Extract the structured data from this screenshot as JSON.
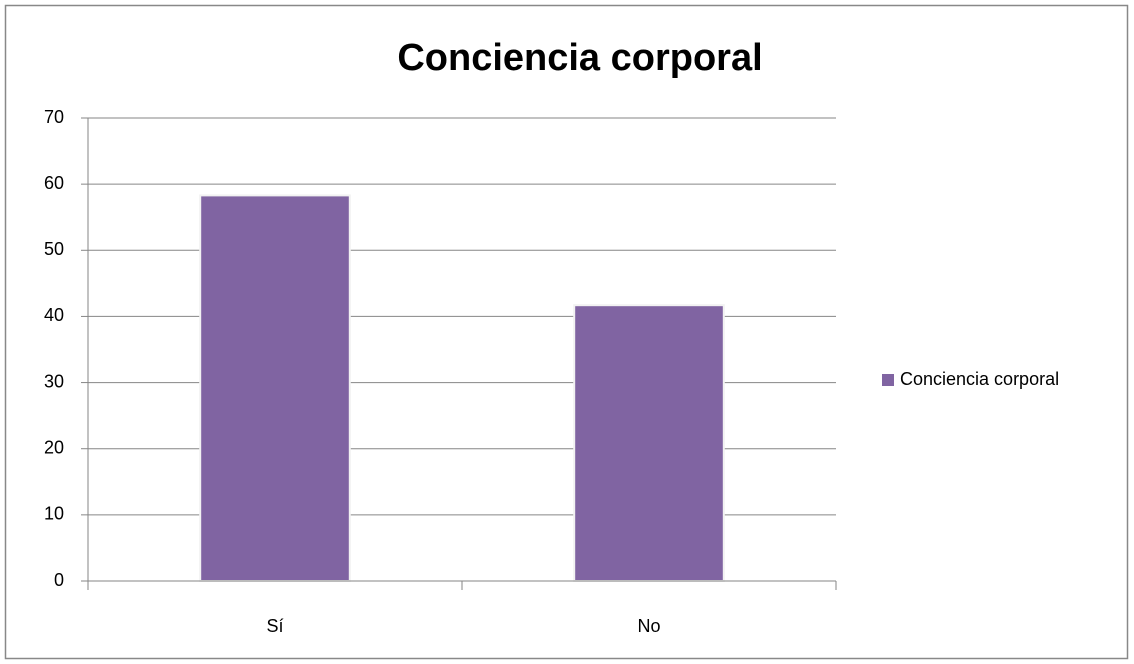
{
  "chart_data": {
    "type": "bar",
    "title": "Conciencia corporal",
    "categories": [
      "Sí",
      "No"
    ],
    "series": [
      {
        "name": "Conciencia corporal",
        "color": "#8064a2",
        "values": [
          58.3,
          41.7
        ]
      }
    ],
    "ylim": [
      0,
      70
    ],
    "yticks": [
      0,
      10,
      20,
      30,
      40,
      50,
      60,
      70
    ],
    "grid": true,
    "legend": "right"
  }
}
